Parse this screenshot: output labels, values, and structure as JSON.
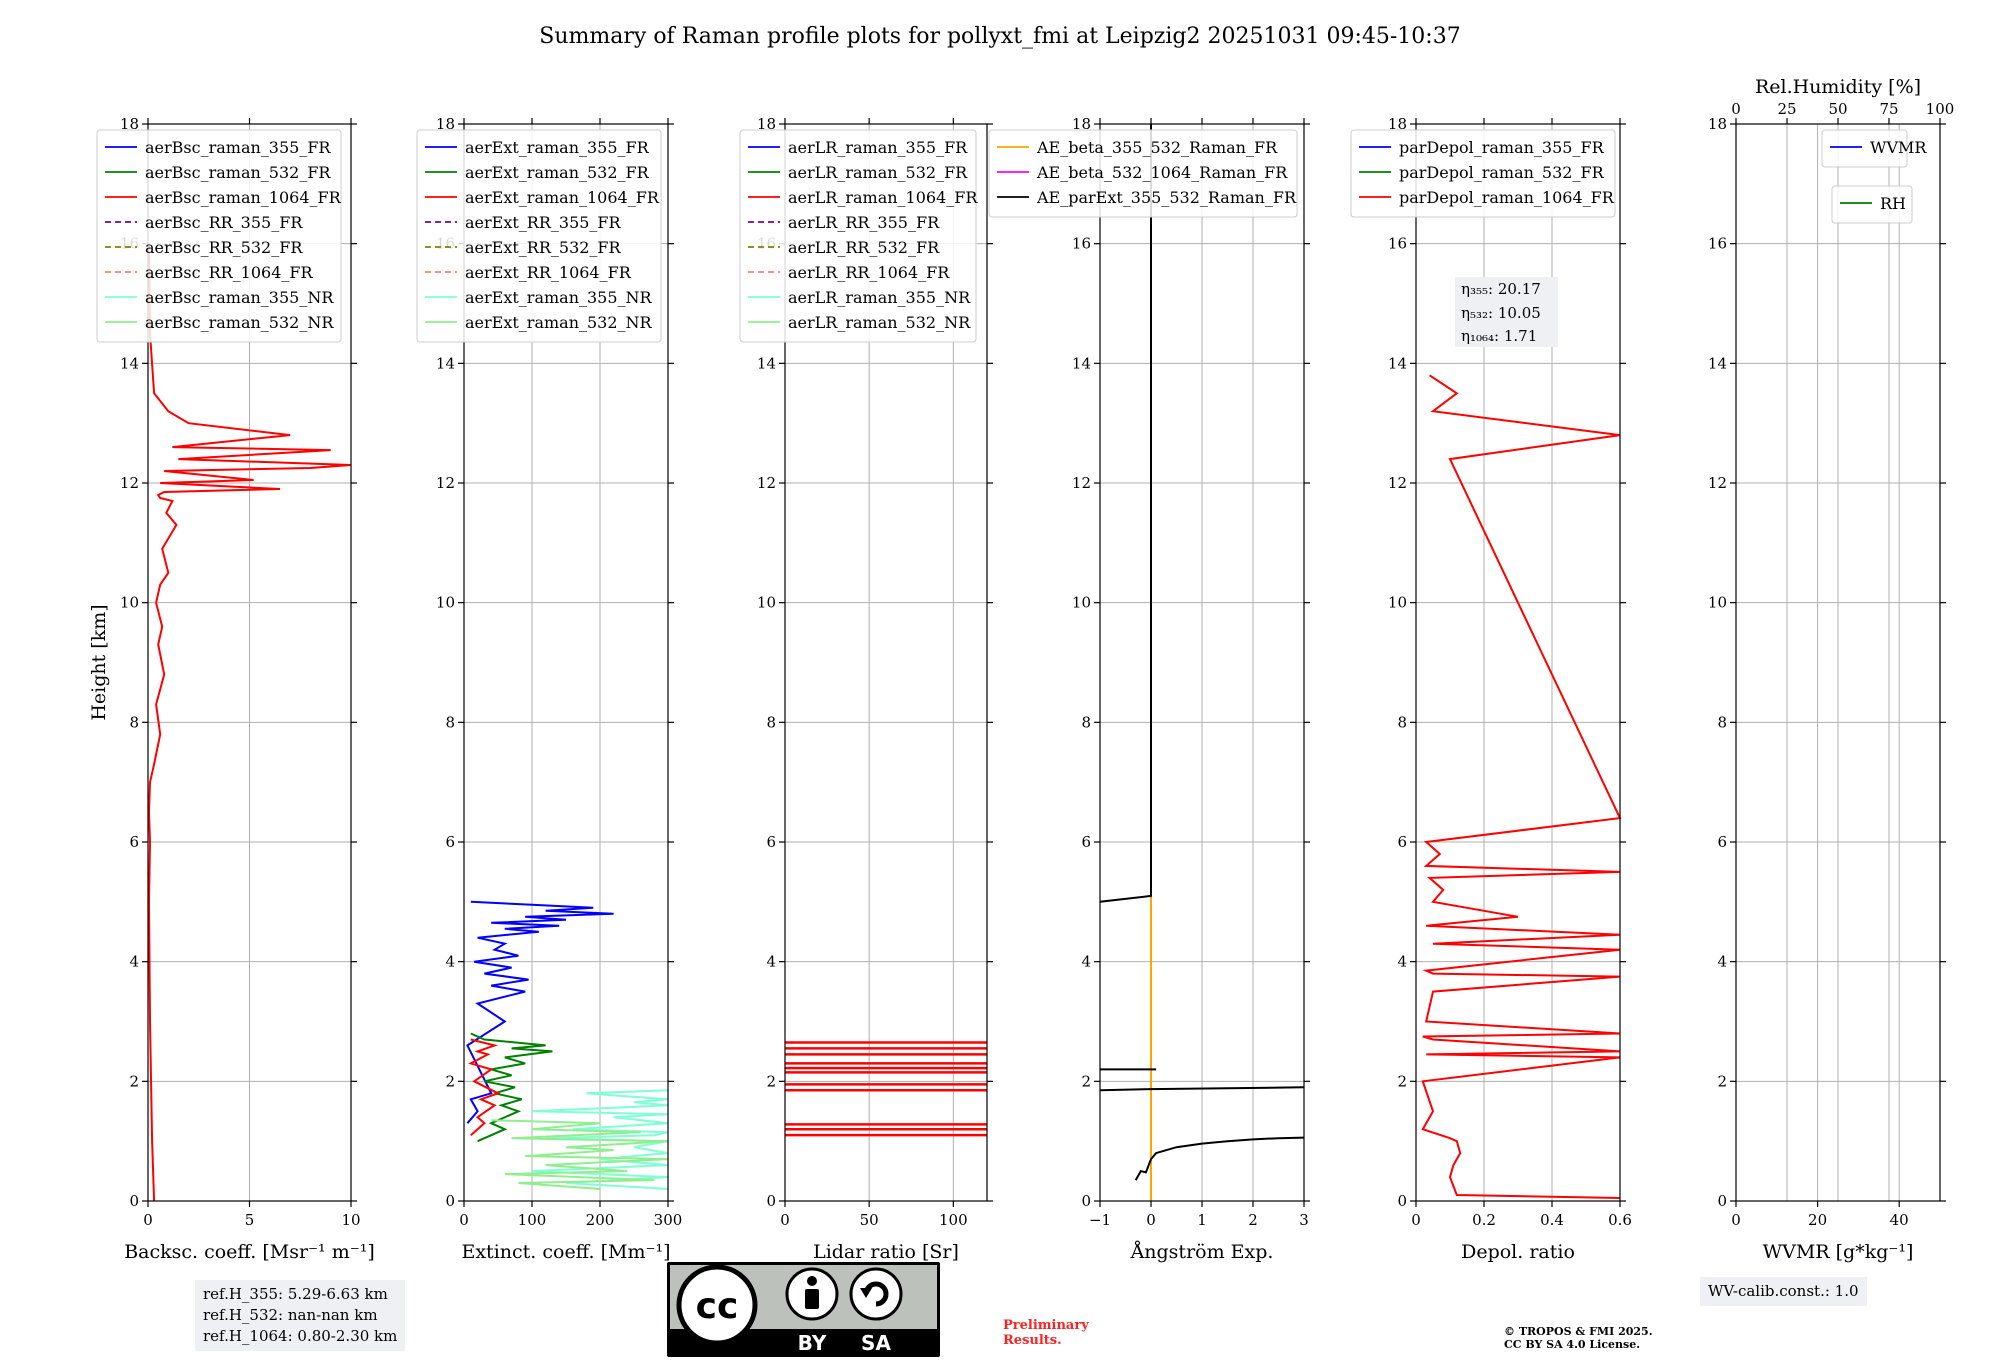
{
  "title": "Summary of Raman profile plots for pollyxt_fmi at Leipzig2 20251031 09:45-10:37",
  "chart_data": [
    {
      "type": "line",
      "xlabel": "Backsc. coeff. [Msr⁻¹ m⁻¹]",
      "ylabel": "Height [km]",
      "xlim": [
        0,
        10
      ],
      "ylim": [
        0,
        18
      ],
      "xticks": [
        0,
        5,
        10
      ],
      "yticks": [
        0,
        2,
        4,
        6,
        8,
        10,
        12,
        14,
        16,
        18
      ],
      "legend": [
        "aerBsc_raman_355_FR",
        "aerBsc_raman_532_FR",
        "aerBsc_raman_1064_FR",
        "aerBsc_RR_355_FR",
        "aerBsc_RR_532_FR",
        "aerBsc_RR_1064_FR",
        "aerBsc_raman_355_NR",
        "aerBsc_raman_532_NR"
      ],
      "series": [
        {
          "name": "aerBsc_raman_1064_FR",
          "color": "#ff0000",
          "x": [
            0.3,
            0.2,
            0.1,
            0.05,
            0.1,
            0.05,
            0.1,
            0.3,
            0.6,
            0.4,
            0.8,
            0.5,
            0.7,
            0.4,
            0.6,
            1.0,
            0.7,
            1.4,
            0.9,
            1.2,
            0.6,
            0.5,
            0.8,
            6.5,
            0.6,
            5.2,
            0.8,
            8.0,
            10.0,
            1.5,
            9.0,
            1.2,
            7.0,
            2.0,
            1.0,
            0.3,
            0.1,
            0.05
          ],
          "y": [
            0.0,
            1.0,
            3.0,
            5.0,
            6.0,
            6.5,
            7.0,
            7.3,
            7.8,
            8.3,
            8.8,
            9.3,
            9.6,
            10.0,
            10.3,
            10.5,
            10.9,
            11.3,
            11.5,
            11.7,
            11.75,
            11.8,
            11.85,
            11.9,
            12.0,
            12.05,
            12.2,
            12.25,
            12.3,
            12.4,
            12.55,
            12.6,
            12.8,
            13.0,
            13.2,
            13.5,
            14.5,
            16.0
          ]
        }
      ]
    },
    {
      "type": "line",
      "xlabel": "Extinct. coeff. [Mm⁻¹]",
      "xlim": [
        0,
        300
      ],
      "ylim": [
        0,
        18
      ],
      "xticks": [
        0,
        100,
        200,
        300
      ],
      "yticks": [
        0,
        2,
        4,
        6,
        8,
        10,
        12,
        14,
        16,
        18
      ],
      "legend": [
        "aerExt_raman_355_FR",
        "aerExt_raman_532_FR",
        "aerExt_raman_1064_FR",
        "aerExt_RR_355_FR",
        "aerExt_RR_532_FR",
        "aerExt_RR_1064_FR",
        "aerExt_raman_355_NR",
        "aerExt_raman_532_NR"
      ],
      "series": [
        {
          "name": "aerExt_raman_355_FR",
          "color": "#0000ff",
          "x": [
            5,
            20,
            10,
            40,
            5,
            60,
            20,
            90,
            40,
            95,
            30,
            70,
            15,
            80,
            45,
            60,
            20,
            110,
            60,
            140,
            40,
            150,
            90,
            220,
            120,
            190,
            100,
            10
          ],
          "y": [
            1.3,
            1.5,
            1.7,
            1.8,
            2.6,
            3.0,
            3.3,
            3.5,
            3.6,
            3.7,
            3.8,
            3.9,
            4.0,
            4.1,
            4.2,
            4.3,
            4.4,
            4.5,
            4.55,
            4.6,
            4.65,
            4.7,
            4.75,
            4.8,
            4.85,
            4.9,
            4.95,
            5.0
          ]
        },
        {
          "name": "aerExt_raman_532_FR",
          "color": "#008000",
          "x": [
            20,
            60,
            40,
            80,
            55,
            85,
            45,
            75,
            30,
            70,
            40,
            90,
            60,
            130,
            70,
            120,
            30,
            10
          ],
          "y": [
            1.0,
            1.2,
            1.3,
            1.5,
            1.6,
            1.7,
            1.8,
            1.9,
            2.0,
            2.1,
            2.2,
            2.3,
            2.4,
            2.5,
            2.55,
            2.6,
            2.7,
            2.8
          ]
        },
        {
          "name": "aerExt_raman_1064_FR",
          "color": "#ff0000",
          "x": [
            10,
            30,
            20,
            45,
            25,
            50,
            15,
            40,
            10,
            35,
            20,
            45,
            10
          ],
          "y": [
            1.1,
            1.3,
            1.4,
            1.6,
            1.7,
            1.8,
            2.0,
            2.2,
            2.3,
            2.45,
            2.5,
            2.6,
            2.7
          ]
        },
        {
          "name": "aerExt_raman_355_NR",
          "color": "#7fffd4",
          "x": [
            300,
            150,
            300,
            100,
            300,
            200,
            300,
            250,
            300,
            120,
            280,
            300,
            160,
            300,
            220,
            300,
            100,
            300,
            250,
            300,
            180,
            300
          ],
          "y": [
            0.2,
            0.3,
            0.4,
            0.5,
            0.6,
            0.7,
            0.8,
            0.9,
            1.0,
            1.05,
            1.1,
            1.15,
            1.2,
            1.3,
            1.4,
            1.45,
            1.5,
            1.6,
            1.65,
            1.7,
            1.8,
            1.85
          ]
        },
        {
          "name": "aerExt_raman_532_NR",
          "color": "#90ee90",
          "x": [
            200,
            80,
            280,
            60,
            240,
            120,
            300,
            90,
            220,
            150,
            300,
            70,
            260,
            100,
            200,
            40
          ],
          "y": [
            0.2,
            0.3,
            0.35,
            0.45,
            0.5,
            0.6,
            0.7,
            0.75,
            0.85,
            0.9,
            1.0,
            1.05,
            1.15,
            1.2,
            1.3,
            1.35
          ]
        }
      ]
    },
    {
      "type": "line",
      "xlabel": "Lidar ratio [Sr]",
      "xlim": [
        0,
        120
      ],
      "ylim": [
        0,
        18
      ],
      "xticks": [
        0,
        50,
        100
      ],
      "yticks": [
        0,
        2,
        4,
        6,
        8,
        10,
        12,
        14,
        16,
        18
      ],
      "legend": [
        "aerLR_raman_355_FR",
        "aerLR_raman_532_FR",
        "aerLR_raman_1064_FR",
        "aerLR_RR_355_FR",
        "aerLR_RR_532_FR",
        "aerLR_RR_1064_FR",
        "aerLR_raman_355_NR",
        "aerLR_raman_532_NR"
      ],
      "hlines": {
        "color": "#ff0000",
        "xmin": 0,
        "xmax": 120,
        "y": [
          1.1,
          1.2,
          1.28,
          1.85,
          1.95,
          2.15,
          2.22,
          2.3,
          2.45,
          2.55,
          2.65
        ]
      }
    },
    {
      "type": "line",
      "xlabel": "Ångström Exp.",
      "xlim": [
        -1,
        3
      ],
      "ylim": [
        0,
        18
      ],
      "xticks": [
        -1,
        0,
        1,
        2,
        3
      ],
      "yticks": [
        0,
        2,
        4,
        6,
        8,
        10,
        12,
        14,
        16,
        18
      ],
      "legend": [
        "AE_beta_355_532_Raman_FR",
        "AE_beta_532_1064_Raman_FR",
        "AE_parExt_355_532_Raman_FR"
      ],
      "series": [
        {
          "name": "AE_beta_355_532_Raman_FR",
          "color": "#ffa500",
          "x": [
            0,
            0
          ],
          "y": [
            0.0,
            5.1
          ]
        },
        {
          "name": "AE_parExt_355_532_Raman_FR",
          "color": "#000000",
          "x": [
            -0.3,
            -0.2,
            -0.1,
            0,
            0.1,
            0.5,
            1.0,
            1.5,
            2.0,
            2.5,
            3.0
          ],
          "y": [
            0.35,
            0.5,
            0.48,
            0.7,
            0.8,
            0.9,
            0.96,
            1.0,
            1.03,
            1.05,
            1.06
          ]
        },
        {
          "name": "AE_parExt_355_532_Raman_FR",
          "color": "#000000",
          "x": [
            -1,
            0,
            3
          ],
          "y": [
            1.85,
            1.87,
            1.9
          ]
        },
        {
          "name": "AE_parExt_355_532_Raman_FR",
          "color": "#000000",
          "x": [
            -1,
            0.1
          ],
          "y": [
            2.2,
            2.2
          ]
        },
        {
          "name": "AE_parExt_355_532_Raman_FR",
          "color": "#000000",
          "x": [
            -1,
            0,
            0,
            0
          ],
          "y": [
            5.0,
            5.1,
            5.1,
            18.0
          ]
        }
      ]
    },
    {
      "type": "line",
      "xlabel": "Depol. ratio",
      "xlim": [
        0,
        0.6
      ],
      "ylim": [
        0,
        18
      ],
      "xticks": [
        0.0,
        0.2,
        0.4,
        0.6
      ],
      "yticks": [
        0,
        2,
        4,
        6,
        8,
        10,
        12,
        14,
        16,
        18
      ],
      "legend": [
        "parDepol_raman_355_FR",
        "parDepol_raman_532_FR",
        "parDepol_raman_1064_FR"
      ],
      "annotation": [
        "η₃₅₅: 20.17",
        "η₅₃₂: 10.05",
        "η₁₀₆₄: 1.71"
      ],
      "series": [
        {
          "name": "parDepol_raman_1064_FR",
          "color": "#ff0000",
          "x": [
            0.6,
            0.12,
            0.1,
            0.11,
            0.13,
            0.12,
            0.1,
            0.02,
            0.05,
            0.02,
            0.6,
            0.03,
            0.6,
            0.05,
            0.02,
            0.6,
            0.03,
            0.05,
            0.6,
            0.05,
            0.03,
            0.6,
            0.05,
            0.6,
            0.03,
            0.3,
            0.05,
            0.08,
            0.04,
            0.6,
            0.03,
            0.07,
            0.03,
            0.6,
            0.1,
            0.6,
            0.05,
            0.12,
            0.04
          ],
          "y": [
            0.05,
            0.1,
            0.4,
            0.6,
            0.8,
            1.0,
            1.05,
            1.2,
            1.5,
            2.0,
            2.4,
            2.45,
            2.5,
            2.7,
            2.75,
            2.8,
            3.0,
            3.5,
            3.75,
            3.8,
            3.85,
            4.2,
            4.3,
            4.45,
            4.6,
            4.75,
            5.0,
            5.2,
            5.4,
            5.5,
            5.6,
            5.8,
            6.0,
            6.4,
            12.4,
            12.8,
            13.2,
            13.5,
            13.8
          ]
        }
      ]
    },
    {
      "type": "line",
      "xlabel": "WVMR [g*kg⁻¹]",
      "x2label": "Rel.Humidity [%]",
      "xlim": [
        0,
        50
      ],
      "x2lim": [
        0,
        100
      ],
      "ylim": [
        0,
        18
      ],
      "xticks": [
        0,
        20,
        40
      ],
      "x2ticks": [
        0,
        25,
        50,
        75,
        100
      ],
      "yticks": [
        0,
        2,
        4,
        6,
        8,
        10,
        12,
        14,
        16,
        18
      ],
      "legend": [
        "WVMR",
        "RH"
      ],
      "series": []
    }
  ],
  "refs": [
    "ref.H_355: 5.29-6.63 km",
    "ref.H_532: nan-nan km",
    "ref.H_1064: 0.80-2.30 km"
  ],
  "license_badge": {
    "by": "BY",
    "sa": "SA"
  },
  "preliminary": [
    "Preliminary",
    "Results."
  ],
  "copyright": [
    "© TROPOS & FMI 2025.",
    "CC BY SA 4.0 License."
  ],
  "wv_calib": "WV-calib.const.: 1.0"
}
